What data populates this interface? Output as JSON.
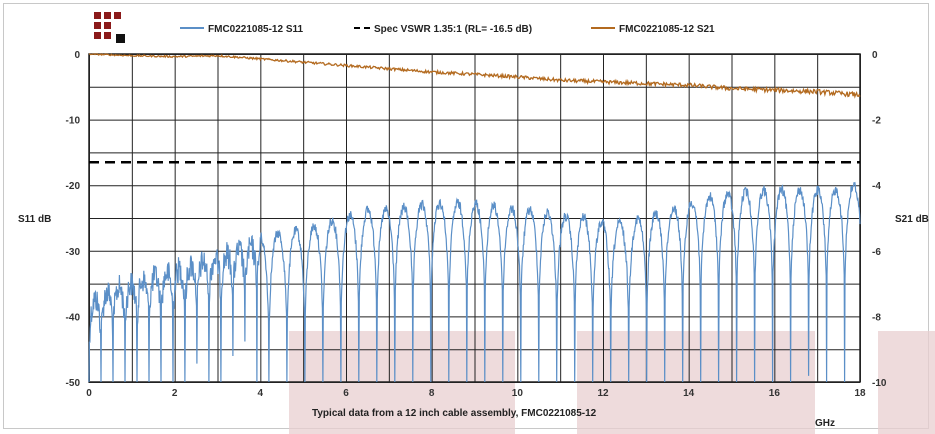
{
  "chart_data": {
    "type": "line",
    "caption": "Typical data from a 12 inch cable assembly, FMC0221085-12",
    "xlabel": "GHz",
    "ylabel_left": "S11 dB",
    "ylabel_right": "S21 dB",
    "xlim": [
      0,
      18
    ],
    "ylim_left": [
      -50,
      0
    ],
    "ylim_right": [
      -10,
      0
    ],
    "x_ticks": [
      "0",
      "2",
      "4",
      "6",
      "8",
      "10",
      "12",
      "14",
      "16",
      "18"
    ],
    "y_left_ticks": [
      "0",
      "-10",
      "-20",
      "-30",
      "-40",
      "-50"
    ],
    "y_right_ticks": [
      "0",
      "-2",
      "-4",
      "-6",
      "-8",
      "-10"
    ],
    "grid": true,
    "legend_position": "top",
    "series": [
      {
        "name": "FMC0221085-12 S11",
        "axis": "left",
        "color": "#5b8fc7",
        "style": "solid",
        "x": [
          0,
          0.5,
          1,
          1.5,
          2,
          2.5,
          3,
          3.5,
          4,
          4.5,
          5,
          5.5,
          6,
          6.5,
          7,
          7.5,
          8,
          8.5,
          9,
          9.5,
          10,
          10.5,
          11,
          11.5,
          12,
          12.5,
          13,
          13.5,
          14,
          14.5,
          15,
          15.5,
          16,
          16.5,
          17,
          17.5,
          18
        ],
        "peak_envelope": [
          -36,
          -34,
          -33,
          -32,
          -31,
          -30,
          -29,
          -28,
          -27,
          -26.5,
          -26,
          -25,
          -24,
          -23,
          -23,
          -22.5,
          -22,
          -22,
          -22,
          -22.5,
          -23,
          -23,
          -24,
          -24,
          -25,
          -25,
          -24,
          -23,
          -22,
          -21,
          -20.5,
          -20,
          -20,
          -20,
          -20,
          -20,
          -19
        ]
      },
      {
        "name": "Spec VSWR 1.35:1 (RL= -16.5 dB)",
        "axis": "left",
        "color": "#000000",
        "style": "dashed",
        "x": [
          0,
          18
        ],
        "y": [
          -16.5,
          -16.5
        ]
      },
      {
        "name": "FMC0221085-12 S21",
        "axis": "right",
        "color": "#b36a1f",
        "style": "solid",
        "x": [
          0,
          1,
          2,
          3,
          4,
          5,
          6,
          7,
          8,
          9,
          10,
          11,
          12,
          13,
          14,
          15,
          16,
          17,
          18
        ],
        "y": [
          0,
          -0.05,
          -0.08,
          -0.05,
          -0.15,
          -0.25,
          -0.35,
          -0.45,
          -0.55,
          -0.62,
          -0.7,
          -0.8,
          -0.85,
          -0.9,
          -0.95,
          -1.05,
          -1.1,
          -1.15,
          -1.25
        ]
      }
    ]
  }
}
